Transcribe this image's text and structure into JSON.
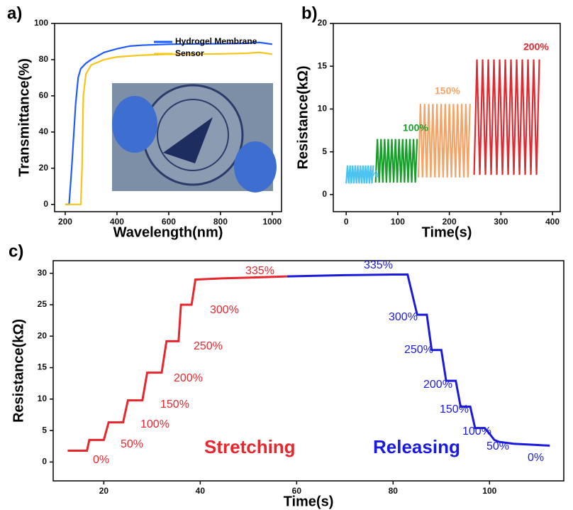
{
  "chart_data": [
    {
      "type": "line",
      "label": "a)",
      "xlabel": "Wavelength(nm)",
      "ylabel": "Transmittance(%)",
      "xlim": [
        159,
        1036
      ],
      "xticks": [
        200,
        400,
        600,
        800,
        1000
      ],
      "ylim": [
        -4,
        100
      ],
      "yticks": [
        0,
        20,
        40,
        60,
        80,
        100
      ],
      "legend": "upper right",
      "series": [
        {
          "name": "Hydrogel Membrane",
          "color": "#1f5cff",
          "x": [
            200,
            215,
            225,
            240,
            250,
            260,
            280,
            300,
            350,
            400,
            450,
            500,
            600,
            700,
            800,
            900,
            950,
            1000
          ],
          "values": [
            0,
            0,
            20,
            55,
            70,
            75,
            78,
            80,
            84,
            86,
            87.5,
            88,
            88.5,
            88.7,
            88.8,
            89,
            89.5,
            88.5
          ]
        },
        {
          "name": "Sensor",
          "color": "#f5c518",
          "x": [
            200,
            250,
            260,
            265,
            270,
            280,
            300,
            350,
            400,
            500,
            600,
            700,
            800,
            900,
            950,
            1000
          ],
          "values": [
            0,
            0,
            0,
            20,
            60,
            72,
            77,
            80,
            81.5,
            82.5,
            83,
            83,
            83.2,
            83.5,
            84,
            83
          ]
        }
      ]
    },
    {
      "type": "line",
      "label": "b)",
      "xlabel": "Time(s)",
      "ylabel": "Resistance(kΩ)",
      "xlim": [
        -25,
        415
      ],
      "xticks": [
        0,
        100,
        200,
        300,
        400
      ],
      "ylim": [
        -2,
        20
      ],
      "yticks": [
        0,
        5,
        10,
        15,
        20
      ],
      "annotations": [
        "50%",
        "100%",
        "150%",
        "200%"
      ],
      "series": [
        {
          "color": "#4dc3f0",
          "x": [
            0,
            2.5,
            5,
            7.5,
            10,
            12.5,
            15,
            17.5,
            20,
            22.5,
            25,
            27.5,
            30,
            32.5,
            35,
            37.5,
            40,
            42.5,
            45,
            47.5,
            50,
            52.5
          ],
          "values": [
            1.3,
            3.4,
            1.3,
            3.4,
            1.3,
            3.4,
            1.3,
            3.4,
            1.3,
            3.4,
            1.3,
            3.4,
            1.3,
            3.4,
            1.3,
            3.4,
            1.3,
            3.4,
            1.3,
            3.4,
            1.3,
            3.4
          ]
        },
        {
          "color": "#16a02a",
          "x": [
            57,
            60.5,
            64,
            67.5,
            71,
            74.5,
            78,
            81.5,
            85,
            88.5,
            92,
            95.5,
            99,
            102.5,
            106,
            109.5,
            113,
            116.5,
            120,
            123.5,
            127,
            130.5,
            134,
            137.5
          ],
          "values": [
            1.4,
            6.5,
            1.4,
            6.5,
            1.4,
            6.5,
            1.4,
            6.5,
            1.4,
            6.5,
            1.4,
            6.5,
            1.4,
            6.5,
            1.4,
            6.5,
            1.4,
            6.5,
            1.4,
            6.5,
            1.4,
            6.5,
            1.4,
            6.5
          ]
        },
        {
          "color": "#f5a468",
          "x": [
            140,
            144,
            148,
            152,
            156,
            160,
            164,
            168,
            172,
            176,
            180,
            184,
            188,
            192,
            196,
            200,
            204,
            208,
            212,
            216,
            220,
            224,
            228,
            232,
            236,
            240
          ],
          "values": [
            2.0,
            10.6,
            2.0,
            10.6,
            2.0,
            10.6,
            2.0,
            10.6,
            2.0,
            10.6,
            2.0,
            10.6,
            2.0,
            10.6,
            2.0,
            10.6,
            2.0,
            10.6,
            2.0,
            10.6,
            2.0,
            10.6,
            2.0,
            10.6,
            2.0,
            10.6
          ]
        },
        {
          "color": "#e8262d",
          "x": [
            248,
            253.5,
            259,
            264.5,
            270,
            275.5,
            281,
            286.5,
            292,
            297.5,
            303,
            308.5,
            314,
            319.5,
            325,
            330.5,
            336,
            341.5,
            347,
            352.5,
            358,
            363.5,
            369,
            374.5
          ],
          "values": [
            2.3,
            15.8,
            2.3,
            15.8,
            2.3,
            15.8,
            2.3,
            15.8,
            2.3,
            15.8,
            2.3,
            15.8,
            2.3,
            15.8,
            2.3,
            15.8,
            2.3,
            15.8,
            2.3,
            15.8,
            2.3,
            15.8,
            2.3,
            15.8
          ]
        }
      ]
    },
    {
      "type": "line",
      "label": "c)",
      "xlabel": "Time(s)",
      "ylabel": "Resistance(kΩ)",
      "xlim": [
        9.5,
        115.4
      ],
      "xticks": [
        20,
        40,
        60,
        80,
        100
      ],
      "ylim": [
        -3,
        32
      ],
      "yticks": [
        0,
        5,
        10,
        15,
        20,
        25,
        30
      ],
      "annotations": [
        "0%",
        "50%",
        "100%",
        "150%",
        "200%",
        "250%",
        "300%",
        "335%",
        "335%",
        "300%",
        "250%",
        "200%",
        "150%",
        "100%",
        "50%",
        "0%",
        "Stretching",
        "Releasing"
      ],
      "series": [
        {
          "color": "#e8262d",
          "x": [
            12.5,
            16.5,
            17,
            20,
            21,
            24,
            25,
            28,
            29,
            32,
            33,
            35.5,
            36,
            38.2,
            39,
            45,
            50,
            58
          ],
          "values": [
            1.8,
            1.8,
            3.5,
            3.5,
            6.3,
            6.3,
            9.8,
            9.8,
            14.2,
            14.2,
            19.2,
            19.2,
            25,
            25,
            29,
            29.2,
            29.3,
            29.5
          ]
        },
        {
          "color": "#1a1adf",
          "x": [
            58,
            70,
            80,
            83,
            85,
            87,
            88,
            90,
            91,
            93,
            94,
            96,
            97,
            99,
            100,
            101,
            102,
            105,
            110,
            112.5
          ],
          "values": [
            29.5,
            29.7,
            29.8,
            29.8,
            23.4,
            23.4,
            17.8,
            17.8,
            12.9,
            12.9,
            8.8,
            8.8,
            5.4,
            5.4,
            4.5,
            3.5,
            3.2,
            2.9,
            2.7,
            2.6
          ]
        }
      ]
    }
  ]
}
